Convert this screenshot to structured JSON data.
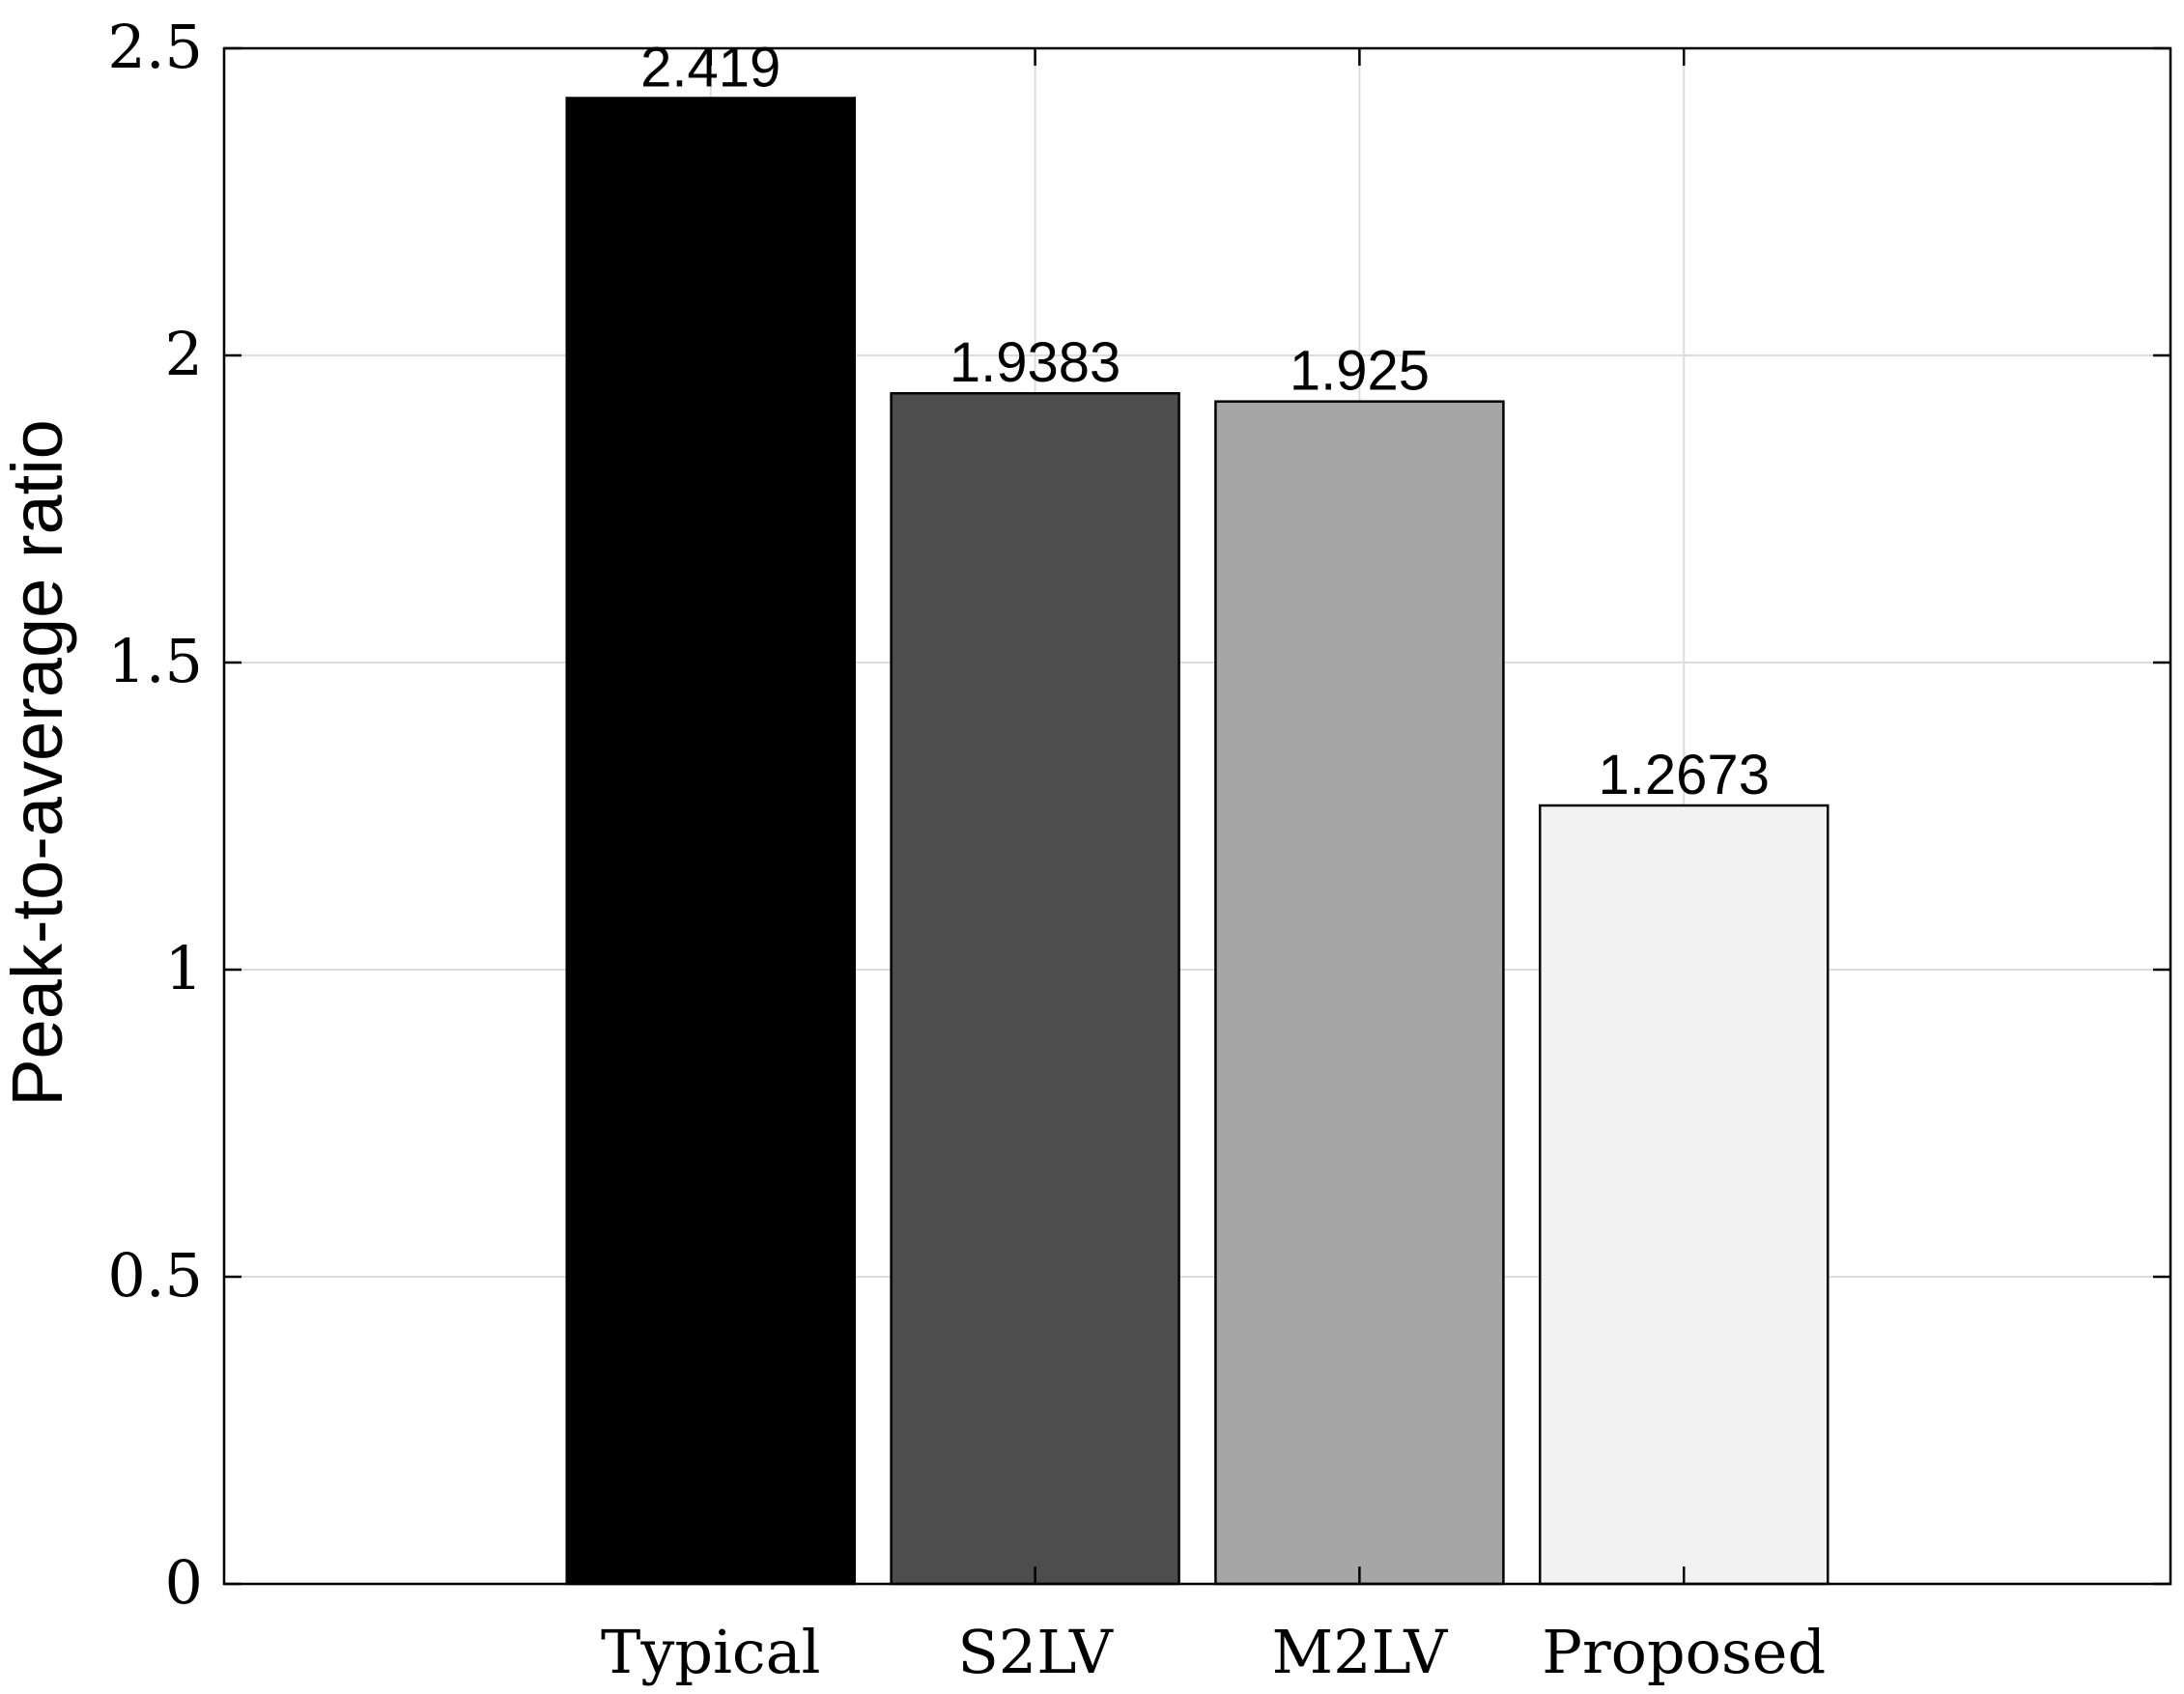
{
  "chart_data": {
    "type": "bar",
    "categories": [
      "Typical",
      "S2LV",
      "M2LV",
      "Proposed"
    ],
    "values": [
      2.419,
      1.9383,
      1.925,
      1.2673
    ],
    "data_labels": [
      "2.419",
      "1.9383",
      "1.925",
      "1.2673"
    ],
    "bar_colors": [
      "#000000",
      "#4d4d4d",
      "#a6a6a6",
      "#f2f2f2"
    ],
    "title": "",
    "xlabel": "",
    "ylabel": "Peak-to-average ratio",
    "ylim": [
      0,
      2.5
    ],
    "yticks": [
      0,
      0.5,
      1,
      1.5,
      2,
      2.5
    ],
    "ytick_labels": [
      "0",
      "0.5",
      "1",
      "1.5",
      "2",
      "2.5"
    ],
    "grid": true,
    "legend": "none"
  }
}
